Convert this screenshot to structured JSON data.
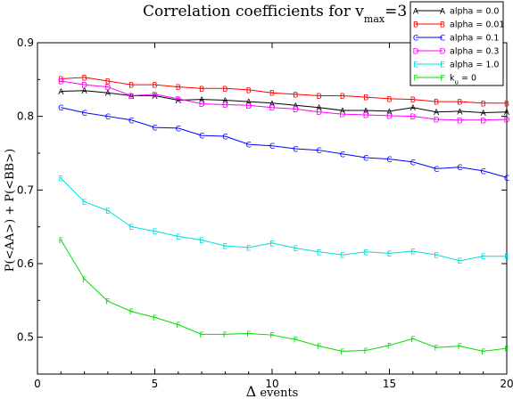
{
  "chart_data": {
    "type": "line",
    "title_prefix": "Correlation coefficients for v",
    "title_subscript": "max",
    "title_suffix": "=3",
    "xlabel_symbol": "Δ",
    "xlabel_text": " events",
    "ylabel": "P(<AA>) + P(<BB>)",
    "xlim": [
      0,
      20
    ],
    "ylim": [
      0.45,
      0.9
    ],
    "xticks": [
      0,
      5,
      10,
      15,
      20
    ],
    "yticks": [
      0.5,
      0.6,
      0.7,
      0.8,
      0.9
    ],
    "ytick_labels": [
      "0.5",
      "0.6",
      "0.7",
      "0.8",
      "0.9"
    ],
    "legend_position": "top-right",
    "x": [
      1,
      2,
      3,
      4,
      5,
      6,
      7,
      8,
      9,
      10,
      11,
      12,
      13,
      14,
      15,
      16,
      17,
      18,
      19,
      20
    ],
    "series": [
      {
        "name": "alpha = 0.0",
        "marker": "A",
        "color": "#000000",
        "values": [
          0.834,
          0.835,
          0.832,
          0.828,
          0.828,
          0.822,
          0.823,
          0.822,
          0.82,
          0.818,
          0.815,
          0.812,
          0.808,
          0.808,
          0.807,
          0.812,
          0.806,
          0.807,
          0.805,
          0.806
        ]
      },
      {
        "name": "alpha = 0.01",
        "marker": "B",
        "color": "#ff0000",
        "values": [
          0.851,
          0.853,
          0.848,
          0.843,
          0.843,
          0.84,
          0.838,
          0.838,
          0.836,
          0.832,
          0.83,
          0.828,
          0.828,
          0.826,
          0.824,
          0.823,
          0.82,
          0.82,
          0.818,
          0.818
        ]
      },
      {
        "name": "alpha = 0.1",
        "marker": "C",
        "color": "#0000ff",
        "values": [
          0.812,
          0.805,
          0.8,
          0.795,
          0.785,
          0.784,
          0.774,
          0.773,
          0.762,
          0.76,
          0.756,
          0.754,
          0.749,
          0.744,
          0.742,
          0.738,
          0.729,
          0.731,
          0.726,
          0.717
        ]
      },
      {
        "name": "alpha = 0.3",
        "marker": "D",
        "color": "#ff00ff",
        "values": [
          0.848,
          0.843,
          0.84,
          0.828,
          0.83,
          0.824,
          0.817,
          0.816,
          0.815,
          0.812,
          0.81,
          0.806,
          0.803,
          0.802,
          0.801,
          0.8,
          0.796,
          0.795,
          0.795,
          0.796
        ]
      },
      {
        "name": "alpha = 1.0",
        "marker": "E",
        "color": "#00dddd",
        "values": [
          0.716,
          0.684,
          0.672,
          0.65,
          0.644,
          0.637,
          0.632,
          0.624,
          0.622,
          0.628,
          0.621,
          0.616,
          0.612,
          0.616,
          0.614,
          0.617,
          0.612,
          0.604,
          0.61,
          0.61
        ]
      },
      {
        "name_prefix": "k",
        "name_subscript": "u",
        "name_suffix": " = 0",
        "marker": "F",
        "color": "#00dd00",
        "values": [
          0.632,
          0.579,
          0.549,
          0.535,
          0.527,
          0.517,
          0.504,
          0.504,
          0.505,
          0.503,
          0.497,
          0.488,
          0.481,
          0.482,
          0.489,
          0.498,
          0.486,
          0.488,
          0.481,
          0.485
        ]
      }
    ]
  }
}
